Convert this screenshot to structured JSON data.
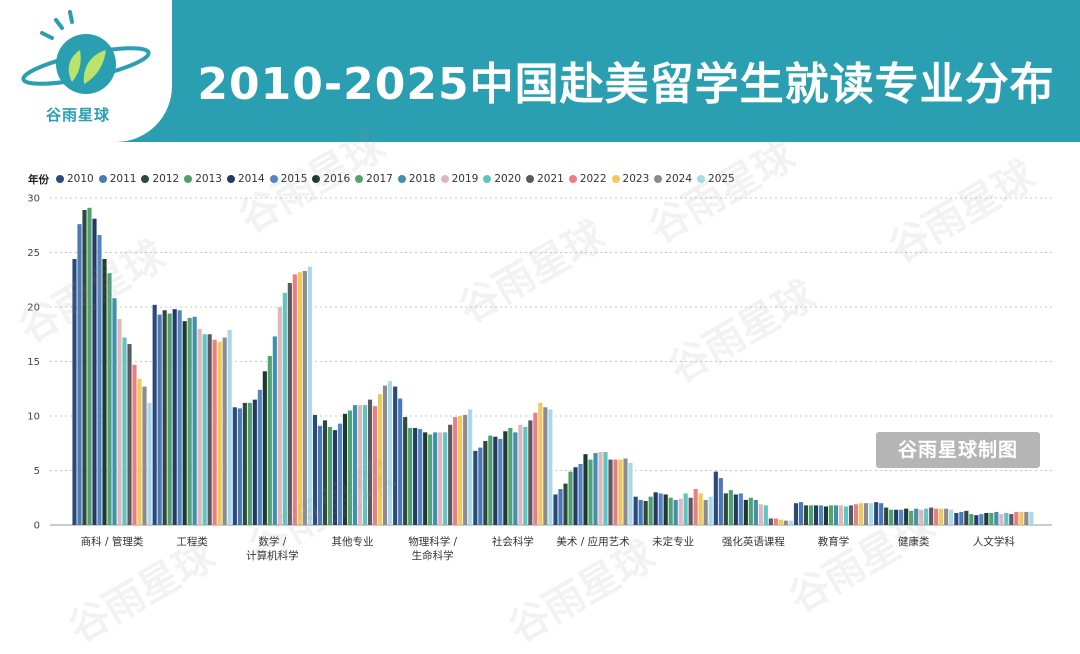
{
  "header": {
    "title": "2010-2025中国赴美留学生就读专业分布",
    "logo_text": "谷雨星球",
    "brand_color": "#2a9fb1"
  },
  "watermark": {
    "text": "谷雨星球",
    "badge": "谷雨星球制图"
  },
  "chart_data": {
    "type": "bar",
    "legend_title": "年份",
    "legend_position": "top-left",
    "ylim": [
      0,
      30
    ],
    "yticks": [
      0,
      5,
      10,
      15,
      20,
      25,
      30
    ],
    "grid": true,
    "categories": [
      "商科 / 管理类",
      "工程类",
      "数学 / 计算机科学",
      "其他专业",
      "物理科学 / 生命科学",
      "社会科学",
      "美术 / 应用艺术",
      "未定专业",
      "强化英语课程",
      "教育学",
      "健康类",
      "人文学科"
    ],
    "category_lines": [
      [
        "商科 / 管理类"
      ],
      [
        "工程类"
      ],
      [
        "数学 /",
        "计算机科学"
      ],
      [
        "其他专业"
      ],
      [
        "物理科学 /",
        "生命科学"
      ],
      [
        "社会科学"
      ],
      [
        "美术 / 应用艺术"
      ],
      [
        "未定专业"
      ],
      [
        "强化英语课程"
      ],
      [
        "教育学"
      ],
      [
        "健康类"
      ],
      [
        "人文学科"
      ]
    ],
    "series": [
      {
        "name": "2010",
        "color": "#2b4a7c",
        "values": [
          24.4,
          20.2,
          10.8,
          10.1,
          12.7,
          6.8,
          2.8,
          2.6,
          4.9,
          2.0,
          2.1,
          1.1
        ]
      },
      {
        "name": "2011",
        "color": "#4b78b8",
        "values": [
          27.6,
          19.3,
          10.7,
          9.1,
          11.6,
          7.1,
          3.3,
          2.3,
          4.3,
          2.1,
          2.0,
          1.2
        ]
      },
      {
        "name": "2012",
        "color": "#2d4a3c",
        "values": [
          28.9,
          19.7,
          11.2,
          9.6,
          9.9,
          7.7,
          3.8,
          2.2,
          2.9,
          1.8,
          1.6,
          1.3
        ]
      },
      {
        "name": "2013",
        "color": "#4ea06c",
        "values": [
          29.1,
          19.4,
          11.2,
          9.0,
          8.9,
          8.2,
          4.9,
          2.6,
          3.2,
          1.8,
          1.4,
          1.0
        ]
      },
      {
        "name": "2014",
        "color": "#243a64",
        "values": [
          28.1,
          19.8,
          11.5,
          8.7,
          8.9,
          8.1,
          5.3,
          3.0,
          2.8,
          1.8,
          1.4,
          0.9
        ]
      },
      {
        "name": "2015",
        "color": "#5584c4",
        "values": [
          26.6,
          19.7,
          12.4,
          9.3,
          8.8,
          7.9,
          5.6,
          2.9,
          2.9,
          1.8,
          1.4,
          1.0
        ]
      },
      {
        "name": "2016",
        "color": "#1c3a2e",
        "values": [
          24.4,
          18.7,
          14.1,
          10.2,
          8.5,
          8.6,
          6.5,
          2.8,
          2.3,
          1.7,
          1.5,
          1.1
        ]
      },
      {
        "name": "2017",
        "color": "#52a373",
        "values": [
          23.1,
          19.0,
          15.5,
          10.5,
          8.3,
          8.9,
          6.0,
          2.5,
          2.5,
          1.8,
          1.3,
          1.1
        ]
      },
      {
        "name": "2018",
        "color": "#3f8fb0",
        "values": [
          20.8,
          19.1,
          17.3,
          11.0,
          8.5,
          8.5,
          6.6,
          2.3,
          2.3,
          1.8,
          1.5,
          1.2
        ]
      },
      {
        "name": "2019",
        "color": "#e0b8bc",
        "values": [
          18.9,
          18.0,
          20.0,
          11.0,
          8.5,
          9.2,
          6.7,
          2.4,
          1.9,
          1.8,
          1.4,
          1.0
        ]
      },
      {
        "name": "2020",
        "color": "#5fc5c0",
        "values": [
          17.2,
          17.5,
          21.3,
          11.0,
          8.5,
          9.0,
          6.7,
          2.9,
          1.8,
          1.7,
          1.5,
          1.1
        ]
      },
      {
        "name": "2021",
        "color": "#5a5a60",
        "values": [
          16.6,
          17.5,
          22.2,
          11.5,
          9.2,
          9.6,
          6.0,
          2.5,
          0.6,
          1.8,
          1.6,
          1.0
        ]
      },
      {
        "name": "2022",
        "color": "#ea7e82",
        "values": [
          14.7,
          17.0,
          23.0,
          10.9,
          9.9,
          10.3,
          6.0,
          3.3,
          0.6,
          1.9,
          1.5,
          1.2
        ]
      },
      {
        "name": "2023",
        "color": "#f1c85a",
        "values": [
          13.4,
          16.8,
          23.2,
          12.0,
          10.0,
          11.2,
          6.0,
          2.9,
          0.5,
          2.0,
          1.5,
          1.2
        ]
      },
      {
        "name": "2024",
        "color": "#8c8c8c",
        "values": [
          12.7,
          17.2,
          23.3,
          12.8,
          10.1,
          10.8,
          6.1,
          2.3,
          0.4,
          2.0,
          1.5,
          1.2
        ]
      },
      {
        "name": "2025",
        "color": "#a9d8ea",
        "values": [
          11.2,
          17.9,
          23.7,
          13.2,
          10.6,
          10.6,
          5.7,
          2.6,
          0.4,
          2.0,
          1.4,
          1.2
        ]
      }
    ]
  }
}
